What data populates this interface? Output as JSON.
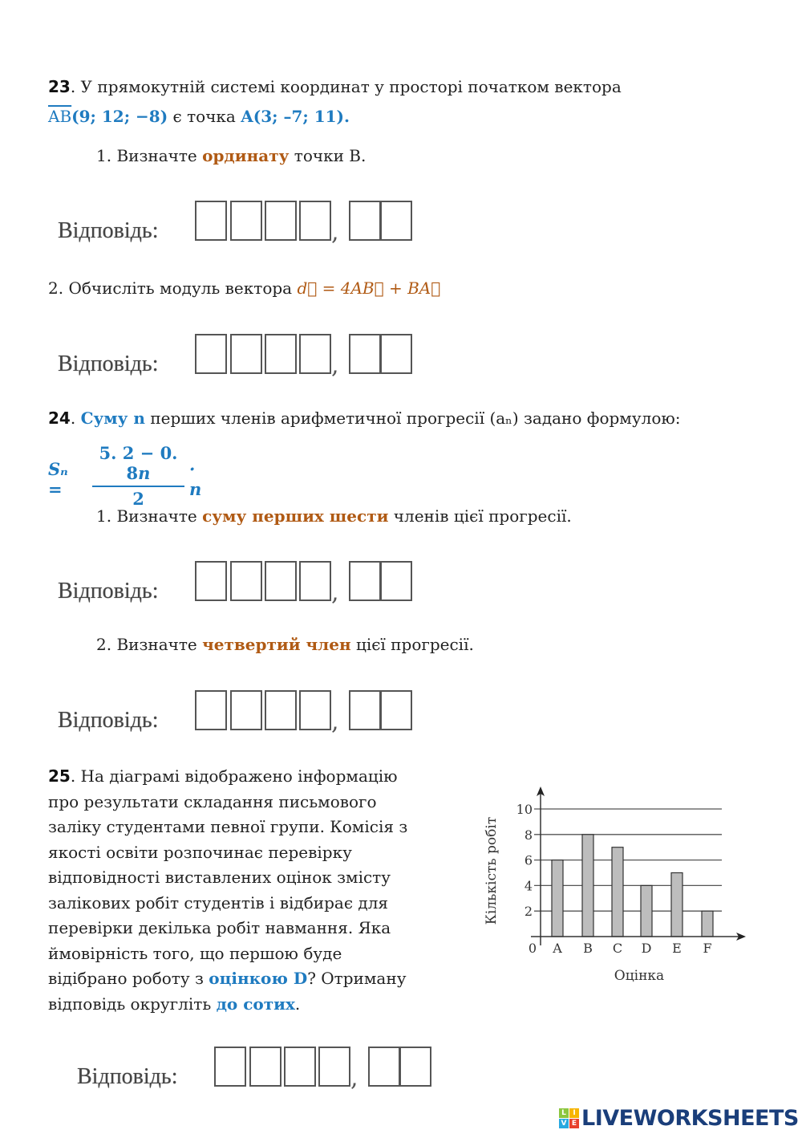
{
  "q23": {
    "number": "23",
    "intro": ". У  прямокутній системі координат у просторі початком вектора",
    "vector": "AB",
    "vector_coords": "(9; 12;  −8)",
    "mid": " є точка ",
    "point": "A(3; –7; 11).",
    "task1_pre": "1. Визначте ",
    "task1_bold": "ординату",
    "task1_post": " точки B.",
    "task2_pre": "2. Обчисліть модуль вектора ",
    "task2_formula": "d⃗ = 4AB⃗ + BA⃗"
  },
  "q24": {
    "number": "24",
    "bold": "Суму n",
    "intro": " перших членів арифметичної прогресії  (aₙ)  задано формулою:",
    "formula_lhs": "Sₙ =",
    "formula_num": "5. 2 − 0. 8",
    "formula_num_var": "n",
    "formula_den": "2",
    "formula_rhs": "· n",
    "task1_pre": "1. Визначте ",
    "task1_bold": "суму перших шести",
    "task1_post": " членів цієї прогресії.",
    "task2_pre": "2. Визначте ",
    "task2_bold": "четвертий член",
    "task2_post": " цієї прогресії."
  },
  "q25": {
    "number": "25",
    "lines": [
      ". На діаграмі відображено інформацію",
      "про результати складання письмового",
      "заліку студентами певної групи. Комісія з",
      "якості освіти розпочинає перевірку",
      "відповідності виставлених оцінок змісту",
      "залікових робіт студентів і відбирає для",
      "перевірки декілька робіт навмання. Яка",
      "ймовірність того, що першою буде"
    ],
    "line9_pre": "відібрано роботу з ",
    "line9_bold": "оцінкою D",
    "line9_post": "? Отриману",
    "line10_pre": "відповідь округліть ",
    "line10_bold": "до сотих",
    "line10_post": "."
  },
  "answer": {
    "label": "Відповідь:",
    "comma": ","
  },
  "chart_data": {
    "type": "bar",
    "categories": [
      "A",
      "B",
      "C",
      "D",
      "E",
      "F"
    ],
    "values": [
      6,
      8,
      7,
      4,
      5,
      2
    ],
    "xlabel": "Оцінка",
    "ylabel": "Кількість робіт",
    "yticks": [
      2,
      4,
      6,
      8,
      10
    ],
    "origin_label": "0",
    "ylim": [
      0,
      10
    ],
    "grid": true,
    "bar_color": "#bdbdbd"
  },
  "logo": {
    "text": "LIVEWORKSHEETS",
    "letters": [
      "L",
      "I",
      "V",
      "E"
    ]
  },
  "colors": {
    "blue": "#1f7bc0",
    "brown": "#b05a14"
  }
}
